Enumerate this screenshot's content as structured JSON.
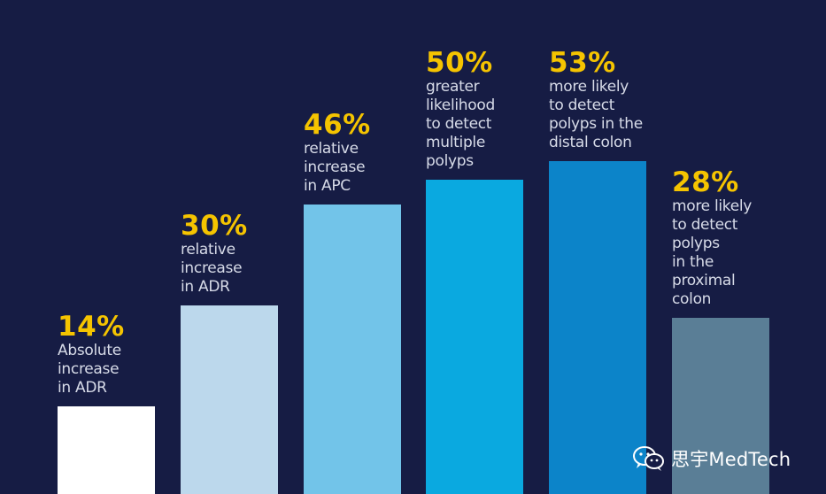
{
  "chart_data": {
    "type": "bar",
    "categories": [
      "Absolute increase in ADR",
      "relative increase in ADR",
      "relative increase in APC",
      "greater likelihood to detect multiple polyps",
      "more likely to detect polyps in the distal colon",
      "more likely to detect polyps in the proximal colon"
    ],
    "values": [
      14,
      30,
      46,
      50,
      53,
      28
    ],
    "value_labels": [
      "14%",
      "30%",
      "46%",
      "50%",
      "53%",
      "28%"
    ],
    "descriptions": [
      "Absolute\nincrease\nin ADR",
      "relative\nincrease\nin ADR",
      "relative\nincrease\nin APC",
      "greater\nlikelihood\nto detect\nmultiple\npolyps",
      "more likely\nto detect\npolyps in the\ndistal colon",
      "more likely\nto detect\npolyps\nin the\nproximal\ncolon"
    ],
    "colors": [
      "#ffffff",
      "#bcd8ec",
      "#72c4e9",
      "#0aa9e0",
      "#0c84c9",
      "#5a7e96"
    ],
    "ylim": [
      0,
      56
    ],
    "title": "",
    "xlabel": "",
    "ylabel": ""
  },
  "watermark": {
    "text": "思宇MedTech",
    "icon": "wechat-icon"
  }
}
